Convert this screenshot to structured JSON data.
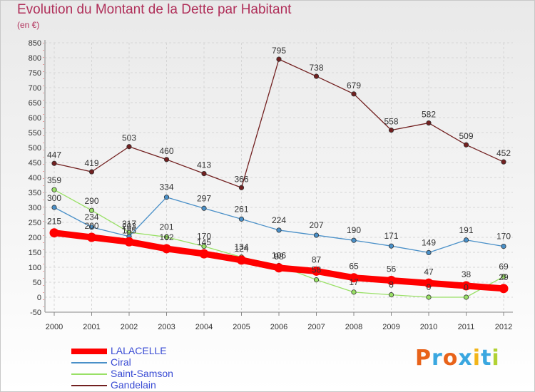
{
  "chart_data": {
    "type": "line",
    "title": "Evolution du Montant de la Dette par Habitant",
    "subtitle": "(en €)",
    "x": [
      "2000",
      "2001",
      "2002",
      "2003",
      "2004",
      "2005",
      "2006",
      "2007",
      "2008",
      "2009",
      "2010",
      "2011",
      "2012"
    ],
    "ylim": [
      -50,
      850
    ],
    "yticks": [
      -50,
      0,
      50,
      100,
      150,
      200,
      250,
      300,
      350,
      400,
      450,
      500,
      550,
      600,
      650,
      700,
      750,
      800,
      850
    ],
    "grid": true,
    "legend_position": "bottom-left",
    "series": [
      {
        "name": "LALACELLE",
        "color": "#ff0000",
        "values": [
          215,
          200,
          185,
          162,
          145,
          124,
          98,
          87,
          65,
          56,
          47,
          38,
          29
        ],
        "labels": [
          "215",
          "200",
          "185",
          "162",
          "145",
          "124",
          "98",
          "87",
          "65",
          "56",
          "47",
          "38",
          "29"
        ]
      },
      {
        "name": "Ciral",
        "color": "#4a90c8",
        "values": [
          300,
          234,
          203,
          334,
          297,
          261,
          224,
          207,
          190,
          171,
          149,
          191,
          170
        ],
        "labels": [
          "300",
          "234",
          "203",
          "334",
          "297",
          "261",
          "224",
          "207",
          "190",
          "171",
          "149",
          "191",
          "170"
        ]
      },
      {
        "name": "Saint-Samson",
        "color": "#99e066",
        "values": [
          359,
          290,
          217,
          201,
          170,
          134,
          106,
          58,
          17,
          8,
          0,
          0,
          69
        ],
        "labels": [
          "359",
          "290",
          "217",
          "201",
          "170",
          "134",
          "106",
          "58",
          "17",
          "8",
          "0",
          "0",
          "69"
        ]
      },
      {
        "name": "Gandelain",
        "color": "#722020",
        "values": [
          447,
          419,
          503,
          460,
          413,
          366,
          795,
          738,
          679,
          558,
          582,
          509,
          452
        ],
        "labels": [
          "447",
          "419",
          "503",
          "460",
          "413",
          "366",
          "795",
          "738",
          "679",
          "558",
          "582",
          "509",
          "452"
        ]
      }
    ]
  },
  "logo": {
    "text": "Proxiti"
  }
}
